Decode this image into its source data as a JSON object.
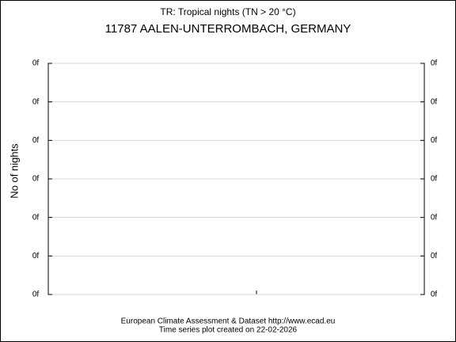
{
  "chart_data": {
    "type": "line",
    "title": "TR: Tropical nights (TN > 20 °C)",
    "subtitle": "11787 AALEN-UNTERROMBACH, GERMANY",
    "y_label": "No of nights",
    "ylim": [
      0,
      6
    ],
    "yticks": [
      {
        "value": 0,
        "label": "0f"
      },
      {
        "value": 1,
        "label": "0f"
      },
      {
        "value": 2,
        "label": "0f"
      },
      {
        "value": 3,
        "label": "0f"
      },
      {
        "value": 4,
        "label": "0f"
      },
      {
        "value": 5,
        "label": "0f"
      },
      {
        "value": 6,
        "label": "0f"
      }
    ],
    "grid": true,
    "footer": [
      "European Climate Assessment & Dataset  http://www.ecad.eu",
      "Time series plot created on 22-02-2026"
    ]
  }
}
